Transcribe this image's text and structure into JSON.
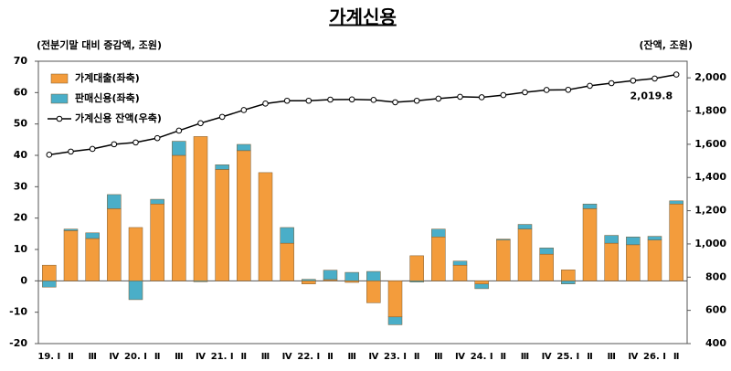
{
  "chart_data": {
    "type": "bar_line",
    "title": "가계신용",
    "y_axis_label": "(전분기말 대비 증감액, 조원)",
    "y2_axis_label": "(잔액, 조원)",
    "categories": [
      "19. Ⅰ",
      "Ⅱ",
      "Ⅲ",
      "Ⅳ",
      "20. Ⅰ",
      "Ⅱ",
      "Ⅲ",
      "Ⅳ",
      "21. Ⅰ",
      "Ⅱ",
      "Ⅲ",
      "Ⅳ",
      "22. Ⅰ",
      "Ⅱ",
      "Ⅲ",
      "Ⅳ",
      "23. Ⅰ",
      "Ⅱ",
      "Ⅲ",
      "Ⅳ",
      "24. Ⅰ",
      "Ⅱ",
      "Ⅲ",
      "Ⅳ",
      "25. Ⅰ",
      "Ⅱ",
      "Ⅲ",
      "Ⅳ",
      "26. Ⅰ",
      "Ⅱ"
    ],
    "series": [
      {
        "name": "가계대출(좌축)",
        "chart": "bar",
        "color": "#f39c3c",
        "values": [
          5,
          16,
          13.5,
          23,
          17,
          24.5,
          40,
          46,
          35.5,
          41.5,
          34.5,
          12,
          -1,
          0.4,
          -0.5,
          -7,
          -11.5,
          8,
          14,
          5,
          -1,
          13,
          16.5,
          8.5,
          3.5,
          23,
          12,
          11.5,
          13,
          24.5
        ]
      },
      {
        "name": "판매신용(좌축)",
        "chart": "bar",
        "color": "#4aaec8",
        "values": [
          -2,
          0.5,
          1.8,
          4.5,
          -6,
          1.5,
          4.5,
          -0.3,
          1.5,
          2,
          0,
          5,
          0.5,
          3,
          2.7,
          3,
          -2.5,
          -0.4,
          2.5,
          1.3,
          -1.5,
          0.3,
          1.5,
          2,
          -1,
          1.5,
          2.5,
          2.5,
          1.2,
          1
        ]
      },
      {
        "name": "가계신용 잔액(우축)",
        "chart": "line",
        "axis": "y2",
        "color": "#000000",
        "values": [
          1537,
          1556,
          1572,
          1600,
          1611,
          1637,
          1682,
          1727,
          1765,
          1806,
          1845,
          1862,
          1862,
          1869,
          1870,
          1867,
          1853,
          1862,
          1875,
          1886,
          1883,
          1896,
          1913,
          1927,
          1928,
          1952,
          1968,
          1983,
          1996,
          2019.8
        ],
        "value_labels": [
          null,
          null,
          null,
          null,
          null,
          null,
          null,
          null,
          null,
          null,
          null,
          null,
          null,
          null,
          null,
          null,
          null,
          null,
          null,
          null,
          null,
          null,
          null,
          null,
          null,
          null,
          null,
          null,
          null,
          "2,019.8"
        ]
      }
    ],
    "ylim": [
      -20,
      70
    ],
    "yticks": [
      -20,
      -10,
      0,
      10,
      20,
      30,
      40,
      50,
      60,
      70
    ],
    "y2lim": [
      400,
      2100
    ],
    "y2ticks": [
      400,
      600,
      800,
      {
        "value": 1000,
        "label": "1,000"
      },
      {
        "value": 1200,
        "label": "1,200"
      },
      {
        "value": 1400,
        "label": "1,400"
      },
      {
        "value": 1600,
        "label": "1,600"
      },
      {
        "value": 1800,
        "label": "1,800"
      },
      {
        "value": 2000,
        "label": "2,000"
      }
    ],
    "legend": "top-left",
    "grid": false
  }
}
